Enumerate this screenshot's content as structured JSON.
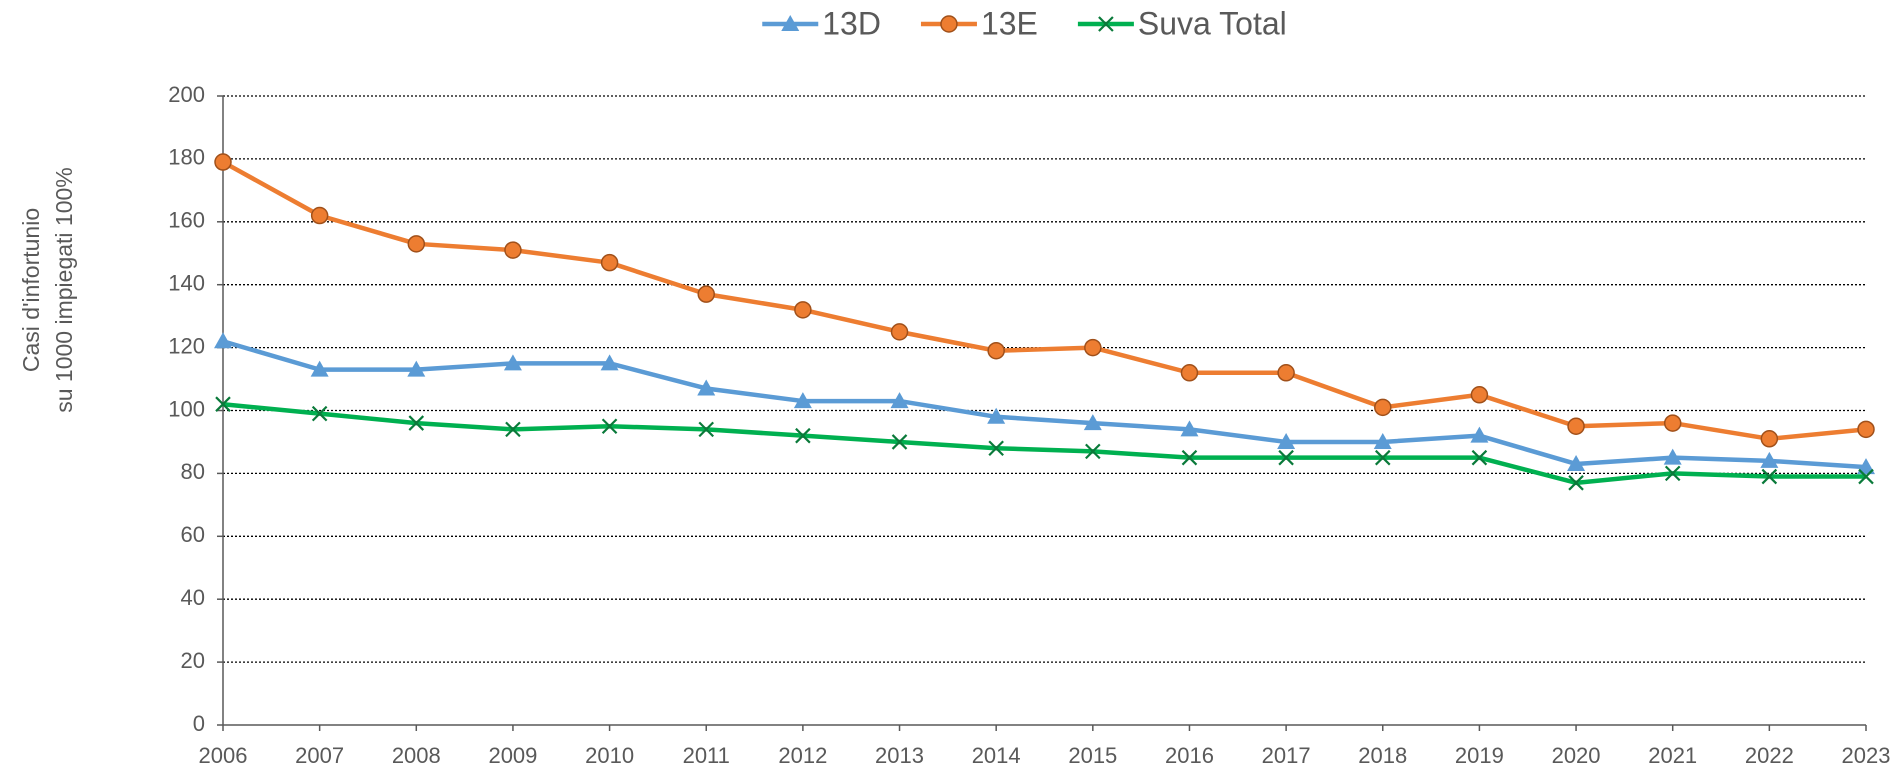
{
  "chart_data": {
    "type": "line",
    "categories": [
      "2006",
      "2007",
      "2008",
      "2009",
      "2010",
      "2011",
      "2012",
      "2013",
      "2014",
      "2015",
      "2016",
      "2017",
      "2018",
      "2019",
      "2020",
      "2021",
      "2022",
      "2023"
    ],
    "ylabel": [
      "Casi d'infortunio",
      "su 1000 impiegati 100%"
    ],
    "ylim": [
      0,
      200
    ],
    "yticks": [
      0,
      20,
      40,
      60,
      80,
      100,
      120,
      140,
      160,
      180,
      200
    ],
    "grid": true,
    "series": [
      {
        "name": "13D",
        "color": "#5b9bd5",
        "marker": "triangle",
        "values": [
          122,
          113,
          113,
          115,
          115,
          107,
          103,
          103,
          98,
          96,
          94,
          90,
          90,
          92,
          83,
          85,
          84,
          82
        ]
      },
      {
        "name": "13E",
        "color": "#ed7d31",
        "marker": "circle",
        "values": [
          179,
          162,
          153,
          151,
          147,
          137,
          132,
          125,
          119,
          120,
          112,
          112,
          101,
          105,
          95,
          96,
          91,
          94
        ]
      },
      {
        "name": "Suva Total",
        "color": "#00b050",
        "marker": "x",
        "values": [
          102,
          99,
          96,
          94,
          95,
          94,
          92,
          90,
          88,
          87,
          85,
          85,
          85,
          85,
          77,
          80,
          79,
          79
        ]
      }
    ]
  }
}
